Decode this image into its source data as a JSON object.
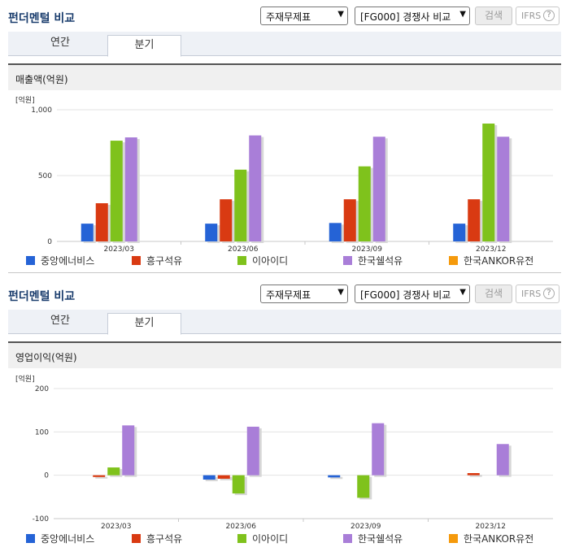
{
  "sections": [
    {
      "title": "펀더멘털 비교",
      "select1": "주재무제표",
      "select2": "[FG000] 경쟁사 비교",
      "search_label": "검색",
      "ifrs_label": "IFRS",
      "ifrs_help": "?",
      "tabs": [
        "연간",
        "분기"
      ],
      "panel_title": "매출액(억원)"
    },
    {
      "title": "펀더멘털 비교",
      "select1": "주재무제표",
      "select2": "[FG000] 경쟁사 비교",
      "search_label": "검색",
      "ifrs_label": "IFRS",
      "ifrs_help": "?",
      "tabs": [
        "연간",
        "분기"
      ],
      "panel_title": "영업이익(억원)"
    }
  ],
  "legend": [
    "중앙에너비스",
    "흥구석유",
    "이아이디",
    "한국쉘석유",
    "한국ANKOR유전"
  ],
  "colors": [
    "#2563d6",
    "#d93a12",
    "#7fc21c",
    "#a97ed8",
    "#f59a0c"
  ],
  "chart_data": [
    {
      "type": "bar",
      "unit_label": "[억원]",
      "categories": [
        "2023/03",
        "2023/06",
        "2023/09",
        "2023/12"
      ],
      "ylim": [
        0,
        1000
      ],
      "yticks": [
        0,
        500,
        1000
      ],
      "ytick_labels": [
        "0",
        "500",
        "1,000"
      ],
      "series": [
        {
          "name": "중앙에너비스",
          "values": [
            135,
            135,
            140,
            135
          ]
        },
        {
          "name": "흥구석유",
          "values": [
            290,
            320,
            320,
            320
          ]
        },
        {
          "name": "이아이디",
          "values": [
            765,
            545,
            570,
            895
          ]
        },
        {
          "name": "한국쉘석유",
          "values": [
            790,
            805,
            795,
            795
          ]
        },
        {
          "name": "한국ANKOR유전",
          "values": [
            0,
            0,
            0,
            0
          ]
        }
      ]
    },
    {
      "type": "bar",
      "unit_label": "[억원]",
      "categories": [
        "2023/03",
        "2023/06",
        "2023/09",
        "2023/12"
      ],
      "ylim": [
        -100,
        200
      ],
      "yticks": [
        -100,
        0,
        100,
        200
      ],
      "ytick_labels": [
        "-100",
        "0",
        "100",
        "200"
      ],
      "series": [
        {
          "name": "중앙에너비스",
          "values": [
            0,
            -10,
            -5,
            0
          ]
        },
        {
          "name": "흥구석유",
          "values": [
            -4,
            -8,
            0,
            5
          ]
        },
        {
          "name": "이아이디",
          "values": [
            18,
            -42,
            -52,
            0
          ]
        },
        {
          "name": "한국쉘석유",
          "values": [
            115,
            112,
            120,
            72
          ]
        },
        {
          "name": "한국ANKOR유전",
          "values": [
            0,
            0,
            0,
            0
          ]
        }
      ]
    }
  ]
}
